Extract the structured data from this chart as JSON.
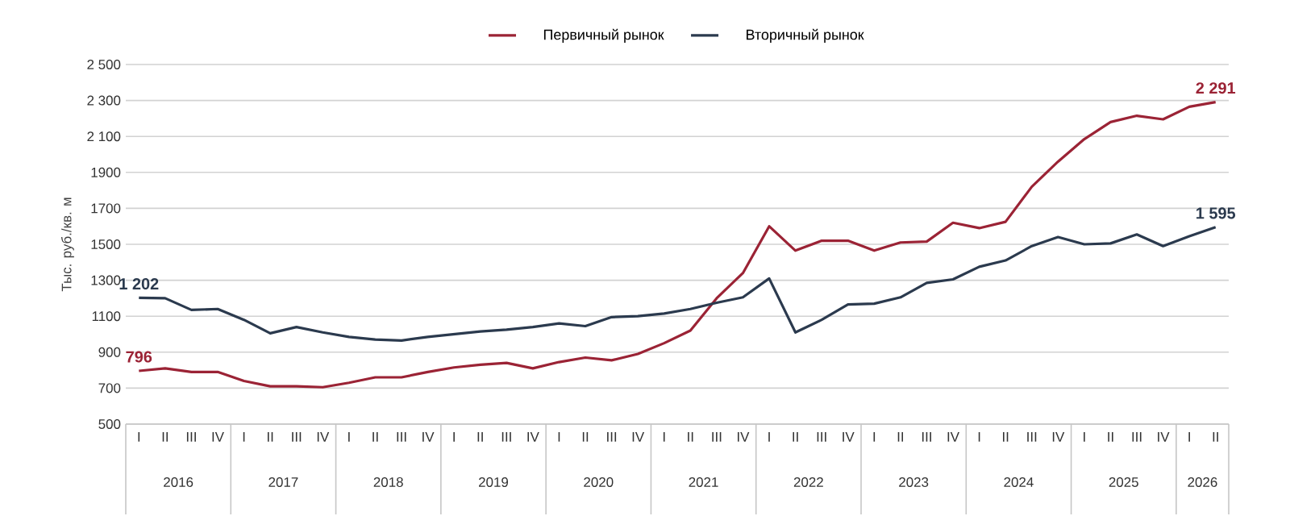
{
  "chart_data": {
    "type": "line",
    "ylabel": "Тыс. руб./кв. м",
    "categories": [
      "I",
      "II",
      "III",
      "IV",
      "I",
      "II",
      "III",
      "IV",
      "I",
      "II",
      "III",
      "IV",
      "I",
      "II",
      "III",
      "IV",
      "I",
      "II",
      "III",
      "IV",
      "I",
      "II",
      "III",
      "IV",
      "I",
      "II",
      "III",
      "IV",
      "I",
      "II",
      "III",
      "IV",
      "I",
      "II",
      "III",
      "IV",
      "I",
      "II",
      "III",
      "IV",
      "I",
      "II"
    ],
    "annotations": [
      "2016",
      "2017",
      "2018",
      "2019",
      "2020",
      "2021",
      "2022",
      "2023",
      "2024",
      "2025",
      "2026"
    ],
    "series": [
      {
        "name": "Первичный рынок",
        "color": "#9b2335",
        "values": [
          796,
          810,
          790,
          790,
          740,
          710,
          710,
          705,
          730,
          760,
          760,
          790,
          815,
          830,
          840,
          810,
          845,
          870,
          855,
          890,
          950,
          1020,
          1200,
          1340,
          1600,
          1465,
          1520,
          1520,
          1465,
          1510,
          1515,
          1620,
          1590,
          1625,
          1820,
          1960,
          2085,
          2180,
          2215,
          2195,
          2265,
          2291
        ],
        "value_labels": [
          "796",
          null,
          null,
          null,
          null,
          null,
          null,
          null,
          null,
          null,
          null,
          null,
          null,
          null,
          null,
          null,
          null,
          null,
          null,
          null,
          null,
          null,
          null,
          null,
          null,
          null,
          null,
          null,
          null,
          null,
          null,
          null,
          null,
          null,
          null,
          null,
          null,
          null,
          null,
          null,
          null,
          "2 291"
        ]
      },
      {
        "name": "Вторичный рынок",
        "color": "#2b3a4e",
        "values": [
          1202,
          1200,
          1135,
          1140,
          1080,
          1005,
          1040,
          1010,
          985,
          970,
          965,
          985,
          1000,
          1015,
          1025,
          1040,
          1060,
          1045,
          1095,
          1100,
          1115,
          1140,
          1175,
          1205,
          1310,
          1010,
          1080,
          1165,
          1170,
          1205,
          1285,
          1305,
          1375,
          1410,
          1490,
          1540,
          1500,
          1505,
          1555,
          1490,
          1545,
          1595
        ],
        "value_labels": [
          "1 202",
          null,
          null,
          null,
          null,
          null,
          null,
          null,
          null,
          null,
          null,
          null,
          null,
          null,
          null,
          null,
          null,
          null,
          null,
          null,
          null,
          null,
          null,
          null,
          null,
          null,
          null,
          null,
          null,
          null,
          null,
          null,
          null,
          null,
          null,
          null,
          null,
          null,
          null,
          null,
          null,
          "1 595"
        ]
      }
    ],
    "ylim": [
      500,
      2500
    ],
    "yticks": [
      500,
      700,
      900,
      1100,
      1300,
      1500,
      1700,
      1900,
      {
        "value": 2100,
        "label": "2 100"
      },
      {
        "value": 2300,
        "label": "2 300"
      },
      {
        "value": 2500,
        "label": "2 500"
      }
    ],
    "grid": "y",
    "legend": "top"
  }
}
